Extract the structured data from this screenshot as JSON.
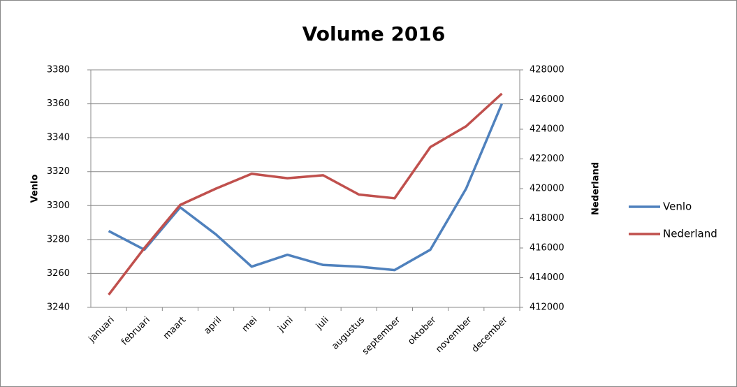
{
  "chart_data": {
    "type": "line",
    "title": "Volume 2016",
    "y_label": "Venlo",
    "y2_label": "Nederland",
    "categories": [
      "januari",
      "februari",
      "maart",
      "april",
      "mei",
      "juni",
      "juli",
      "augustus",
      "september",
      "oktober",
      "november",
      "december"
    ],
    "series": [
      {
        "name": "Venlo",
        "color": "#4f81bd",
        "values": [
          3285,
          3274,
          3299,
          3283,
          3264,
          3271,
          3265,
          3264,
          3262,
          3274,
          3310,
          3360
        ]
      },
      {
        "name": "Nederland",
        "color": "#c0504d",
        "axis": "y2",
        "values": [
          412850,
          416000,
          418900,
          420000,
          421000,
          420700,
          420900,
          419600,
          419350,
          422800,
          424200,
          426400
        ]
      }
    ],
    "ylim": [
      3240,
      3380
    ],
    "yticks": [
      3240,
      3260,
      3280,
      3300,
      3320,
      3340,
      3360,
      3380
    ],
    "y2lim": [
      412000,
      428000
    ],
    "y2ticks": [
      412000,
      414000,
      416000,
      418000,
      420000,
      422000,
      424000,
      426000,
      428000
    ],
    "grid": true,
    "legend": "right"
  }
}
